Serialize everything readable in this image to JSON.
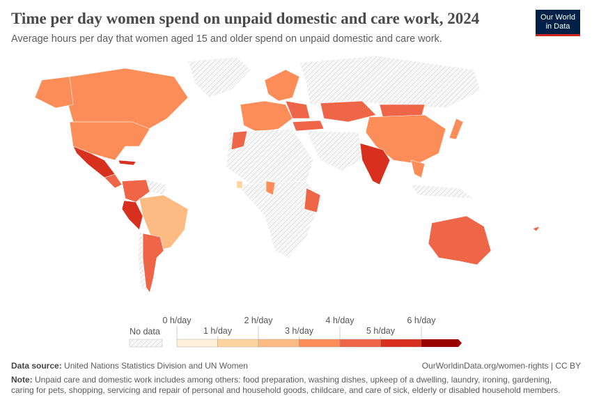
{
  "header": {
    "title": "Time per day women spend on unpaid domestic and care work, 2024",
    "subtitle": "Average hours per day that women aged 15 and older spend on unpaid domestic and care work.",
    "logo": "Our World in Data"
  },
  "legend": {
    "no_data_label": "No data",
    "bins": [
      {
        "label": "0 h/day",
        "color": "#fef0d9"
      },
      {
        "label": "1 h/day",
        "color": "#fdd49e"
      },
      {
        "label": "2 h/day",
        "color": "#fdbb84"
      },
      {
        "label": "3 h/day",
        "color": "#fc8d59"
      },
      {
        "label": "4 h/day",
        "color": "#ef6548"
      },
      {
        "label": "5 h/day",
        "color": "#d7301f"
      },
      {
        "label": "6 h/day",
        "color": "#990000"
      }
    ]
  },
  "footer": {
    "source_label": "Data source:",
    "source": "United Nations Statistics Division and UN Women",
    "url": "OurWorldinData.org/women-rights | CC BY",
    "note_label": "Note:",
    "note": "Unpaid care and domestic work includes among others: food preparation, washing dishes, upkeep of a dwelling, laundry, ironing, gardening, caring for pets, shopping, servicing and repair of personal and household goods, childcare, and care of sick, elderly or disabled household members."
  }
}
